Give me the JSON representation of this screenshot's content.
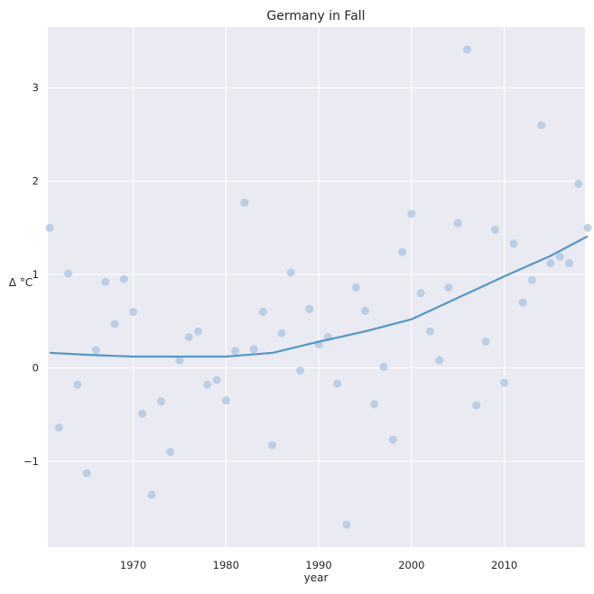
{
  "chart_data": {
    "type": "scatter",
    "title": "Germany in Fall",
    "xlabel": "year",
    "ylabel": "Δ °C",
    "xlim": [
      1960.8,
      2018.7
    ],
    "ylim": [
      -1.92,
      3.65
    ],
    "x_ticks": [
      1970,
      1980,
      1990,
      2000,
      2010
    ],
    "y_ticks": [
      -1,
      0,
      1,
      2,
      3
    ],
    "grid": true,
    "background": "#eaeaf2",
    "point_color": "#a9c4e0",
    "line_color": "#5497c7",
    "series": [
      {
        "kind": "points",
        "x": [
          1961,
          1962,
          1963,
          1964,
          1965,
          1966,
          1967,
          1968,
          1969,
          1970,
          1971,
          1972,
          1973,
          1974,
          1975,
          1976,
          1977,
          1978,
          1979,
          1980,
          1981,
          1982,
          1983,
          1984,
          1985,
          1986,
          1987,
          1988,
          1989,
          1990,
          1991,
          1992,
          1993,
          1994,
          1995,
          1996,
          1997,
          1998,
          1999,
          2000,
          2001,
          2002,
          2003,
          2004,
          2005,
          2006,
          2007,
          2008,
          2009,
          2010,
          2011,
          2012,
          2013,
          2014,
          2015,
          2016,
          2017,
          2018,
          2019
        ],
        "y": [
          1.5,
          -0.64,
          1.01,
          -0.18,
          -1.13,
          0.19,
          0.92,
          0.47,
          0.95,
          0.6,
          -0.49,
          -1.36,
          -0.36,
          -0.9,
          0.08,
          0.33,
          0.39,
          -0.18,
          -0.13,
          -0.35,
          0.18,
          1.77,
          0.2,
          0.6,
          -0.83,
          0.37,
          1.02,
          -0.03,
          0.63,
          0.25,
          0.33,
          -0.17,
          -1.68,
          0.86,
          0.61,
          -0.39,
          0.01,
          -0.77,
          1.24,
          1.65,
          0.8,
          0.39,
          0.08,
          0.86,
          1.55,
          3.41,
          -0.4,
          0.28,
          1.48,
          -0.16,
          1.33,
          0.7,
          0.94,
          2.6,
          1.12,
          1.19,
          1.12,
          1.97,
          1.5
        ]
      },
      {
        "kind": "trend",
        "x": [
          1961,
          1965,
          1970,
          1975,
          1980,
          1985,
          1990,
          1995,
          2000,
          2005,
          2010,
          2015,
          2019
        ],
        "y": [
          0.16,
          0.14,
          0.12,
          0.12,
          0.12,
          0.16,
          0.28,
          0.39,
          0.52,
          0.75,
          0.98,
          1.2,
          1.41
        ]
      }
    ]
  }
}
